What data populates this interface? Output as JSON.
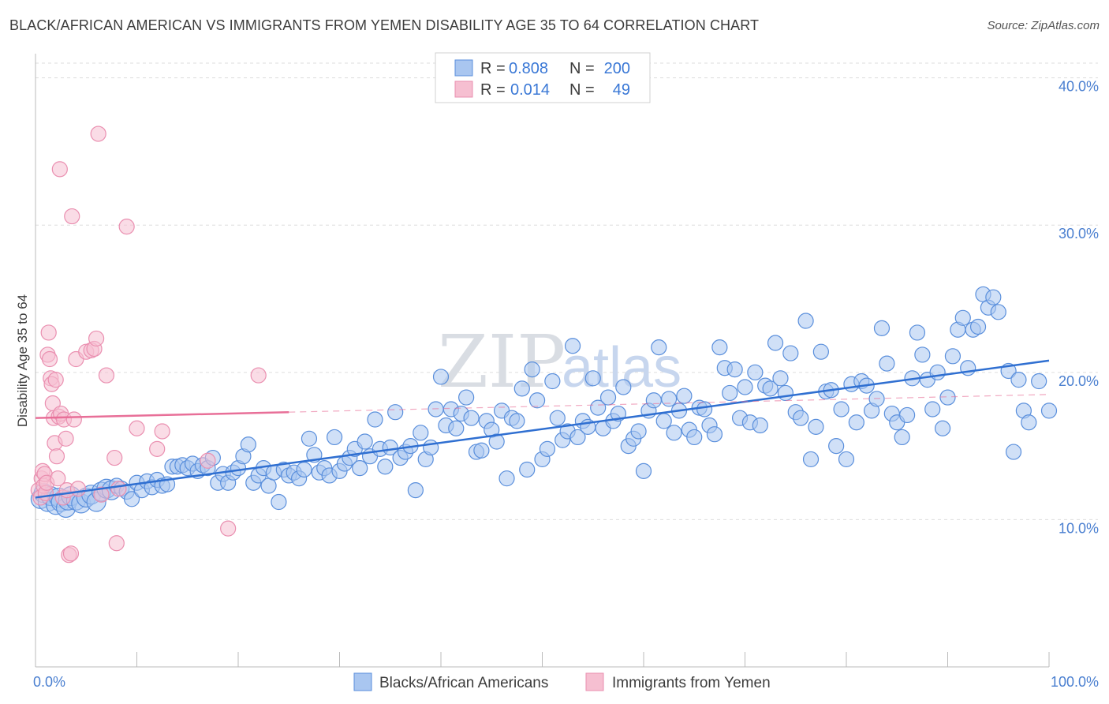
{
  "title": "BLACK/AFRICAN AMERICAN VS IMMIGRANTS FROM YEMEN DISABILITY AGE 35 TO 64 CORRELATION CHART",
  "source": "Source: ZipAtlas.com",
  "watermark": {
    "zip": "ZIP",
    "atlas": "atlas"
  },
  "colors": {
    "blue_fill": "#a9c6f0",
    "blue_stroke": "#5a8fdc",
    "blue_line": "#2f6fd1",
    "pink_fill": "#f6bfd1",
    "pink_stroke": "#ea8fb0",
    "pink_line": "#e86f98",
    "tick_text": "#4a7fd0",
    "grid": "#dddddd"
  },
  "legend": {
    "rows": [
      {
        "r_label": "R =",
        "r_value": "0.808",
        "n_label": "N =",
        "n_value": "200",
        "color": "blue"
      },
      {
        "r_label": "R =",
        "r_value": "0.014",
        "n_label": "N =",
        "n_value": "49",
        "color": "pink"
      }
    ]
  },
  "chart_data": {
    "type": "scatter",
    "title": "BLACK/AFRICAN AMERICAN VS IMMIGRANTS FROM YEMEN DISABILITY AGE 35 TO 64 CORRELATION CHART",
    "xlabel": "",
    "ylabel": "Disability Age 35 to 64",
    "xlim": [
      0,
      100
    ],
    "ylim": [
      0,
      41
    ],
    "y_ticks": [
      {
        "v": 10,
        "label": "10.0%"
      },
      {
        "v": 20,
        "label": "20.0%"
      },
      {
        "v": 30,
        "label": "30.0%"
      },
      {
        "v": 40,
        "label": "40.0%"
      }
    ],
    "x_tick_labels": [
      {
        "v": 0,
        "label": "0.0%"
      },
      {
        "v": 100,
        "label": "100.0%"
      }
    ],
    "x_minor_ticks": [
      0,
      10,
      20,
      30,
      40,
      50,
      60,
      70,
      80,
      90,
      100
    ],
    "grid": true,
    "legend_position": "top-center",
    "series": [
      {
        "name": "Blacks/African Americans",
        "color": "blue",
        "r": 0.808,
        "n": 200,
        "trend": {
          "x0": 0,
          "y0": 11.5,
          "x1": 100,
          "y1": 20.8,
          "style": "solid"
        },
        "points": [
          [
            0.5,
            11.4
          ],
          [
            0.8,
            11.8
          ],
          [
            1.2,
            11.2
          ],
          [
            1.5,
            11.6
          ],
          [
            2.0,
            11.0
          ],
          [
            2.3,
            11.5
          ],
          [
            2.5,
            11.2
          ],
          [
            3.0,
            10.8
          ],
          [
            3.2,
            11.3
          ],
          [
            3.5,
            11.6
          ],
          [
            4.0,
            11.3
          ],
          [
            4.5,
            11.1
          ],
          [
            5.0,
            11.5
          ],
          [
            5.5,
            11.7
          ],
          [
            6.0,
            11.2
          ],
          [
            6.5,
            11.9
          ],
          [
            7.0,
            12.1
          ],
          [
            7.5,
            12.0
          ],
          [
            8.0,
            12.3
          ],
          [
            8.5,
            12.1
          ],
          [
            9.0,
            11.9
          ],
          [
            9.5,
            11.4
          ],
          [
            10.0,
            12.5
          ],
          [
            10.5,
            12.0
          ],
          [
            11.0,
            12.6
          ],
          [
            11.5,
            12.2
          ],
          [
            12.0,
            12.7
          ],
          [
            12.5,
            12.3
          ],
          [
            13.0,
            12.4
          ],
          [
            13.5,
            13.6
          ],
          [
            14.0,
            13.6
          ],
          [
            14.5,
            13.7
          ],
          [
            15.0,
            13.5
          ],
          [
            15.5,
            13.8
          ],
          [
            16.0,
            13.3
          ],
          [
            16.5,
            13.7
          ],
          [
            17.0,
            13.5
          ],
          [
            17.5,
            14.2
          ],
          [
            18.0,
            12.5
          ],
          [
            18.5,
            13.1
          ],
          [
            19.0,
            12.5
          ],
          [
            19.5,
            13.2
          ],
          [
            20.0,
            13.5
          ],
          [
            20.5,
            14.3
          ],
          [
            21.0,
            15.1
          ],
          [
            21.5,
            12.5
          ],
          [
            22.0,
            13.0
          ],
          [
            22.5,
            13.5
          ],
          [
            23.0,
            12.3
          ],
          [
            23.5,
            13.2
          ],
          [
            24.0,
            11.2
          ],
          [
            24.5,
            13.4
          ],
          [
            25.0,
            13.0
          ],
          [
            25.5,
            13.2
          ],
          [
            26.0,
            12.8
          ],
          [
            26.5,
            13.4
          ],
          [
            27.0,
            15.5
          ],
          [
            27.5,
            14.4
          ],
          [
            28.0,
            13.2
          ],
          [
            28.5,
            13.5
          ],
          [
            29.0,
            13.0
          ],
          [
            29.5,
            15.6
          ],
          [
            30.0,
            13.3
          ],
          [
            30.5,
            13.8
          ],
          [
            31.0,
            14.2
          ],
          [
            31.5,
            14.8
          ],
          [
            32.0,
            13.5
          ],
          [
            32.5,
            15.3
          ],
          [
            33.0,
            14.3
          ],
          [
            33.5,
            16.8
          ],
          [
            34.0,
            14.8
          ],
          [
            34.5,
            13.6
          ],
          [
            35.0,
            14.9
          ],
          [
            35.5,
            17.3
          ],
          [
            36.0,
            14.2
          ],
          [
            36.5,
            14.6
          ],
          [
            37.0,
            15.0
          ],
          [
            37.5,
            12.0
          ],
          [
            38.0,
            15.9
          ],
          [
            38.5,
            14.1
          ],
          [
            39.0,
            14.9
          ],
          [
            39.5,
            17.5
          ],
          [
            40.0,
            19.7
          ],
          [
            40.5,
            16.4
          ],
          [
            41.0,
            17.5
          ],
          [
            41.5,
            16.2
          ],
          [
            42.0,
            17.2
          ],
          [
            42.5,
            18.3
          ],
          [
            43.0,
            16.9
          ],
          [
            43.5,
            14.6
          ],
          [
            44.0,
            14.7
          ],
          [
            44.5,
            16.7
          ],
          [
            45.0,
            16.1
          ],
          [
            45.5,
            15.3
          ],
          [
            46.0,
            17.4
          ],
          [
            46.5,
            12.8
          ],
          [
            47.0,
            16.9
          ],
          [
            47.5,
            16.7
          ],
          [
            48.0,
            18.9
          ],
          [
            48.5,
            13.4
          ],
          [
            49.0,
            20.2
          ],
          [
            49.5,
            18.1
          ],
          [
            50.0,
            14.1
          ],
          [
            50.5,
            14.8
          ],
          [
            51.0,
            19.4
          ],
          [
            51.5,
            16.9
          ],
          [
            52.0,
            15.4
          ],
          [
            52.5,
            16.0
          ],
          [
            53.0,
            21.8
          ],
          [
            53.5,
            15.6
          ],
          [
            54.0,
            16.7
          ],
          [
            54.5,
            16.3
          ],
          [
            55.0,
            19.6
          ],
          [
            55.5,
            17.6
          ],
          [
            56.0,
            16.2
          ],
          [
            56.5,
            18.3
          ],
          [
            57.0,
            16.7
          ],
          [
            57.5,
            17.2
          ],
          [
            58.0,
            19.0
          ],
          [
            58.5,
            15.0
          ],
          [
            59.0,
            15.5
          ],
          [
            59.5,
            16.0
          ],
          [
            60.0,
            13.3
          ],
          [
            60.5,
            17.4
          ],
          [
            61.0,
            18.1
          ],
          [
            61.5,
            21.7
          ],
          [
            62.0,
            16.7
          ],
          [
            62.5,
            18.2
          ],
          [
            63.0,
            15.9
          ],
          [
            63.5,
            17.4
          ],
          [
            64.0,
            18.4
          ],
          [
            64.5,
            16.1
          ],
          [
            65.0,
            15.6
          ],
          [
            65.5,
            17.6
          ],
          [
            66.0,
            17.5
          ],
          [
            66.5,
            16.4
          ],
          [
            67.0,
            15.8
          ],
          [
            67.5,
            21.7
          ],
          [
            68.0,
            20.3
          ],
          [
            68.5,
            18.6
          ],
          [
            69.0,
            20.2
          ],
          [
            69.5,
            16.9
          ],
          [
            70.0,
            19.0
          ],
          [
            70.5,
            16.6
          ],
          [
            71.0,
            20.0
          ],
          [
            71.5,
            16.4
          ],
          [
            72.0,
            19.1
          ],
          [
            72.5,
            18.9
          ],
          [
            73.0,
            22.0
          ],
          [
            73.5,
            19.6
          ],
          [
            74.0,
            18.6
          ],
          [
            74.5,
            21.3
          ],
          [
            75.0,
            17.3
          ],
          [
            75.5,
            16.9
          ],
          [
            76.0,
            23.5
          ],
          [
            76.5,
            14.1
          ],
          [
            77.0,
            16.3
          ],
          [
            77.5,
            21.4
          ],
          [
            78.0,
            18.7
          ],
          [
            78.5,
            18.8
          ],
          [
            79.0,
            15.0
          ],
          [
            79.5,
            17.5
          ],
          [
            80.0,
            14.1
          ],
          [
            80.5,
            19.2
          ],
          [
            81.0,
            16.6
          ],
          [
            81.5,
            19.4
          ],
          [
            82.0,
            19.1
          ],
          [
            82.5,
            17.4
          ],
          [
            83.0,
            18.2
          ],
          [
            83.5,
            23.0
          ],
          [
            84.0,
            20.6
          ],
          [
            84.5,
            17.2
          ],
          [
            85.0,
            16.6
          ],
          [
            85.5,
            15.6
          ],
          [
            86.0,
            17.1
          ],
          [
            86.5,
            19.6
          ],
          [
            87.0,
            22.7
          ],
          [
            87.5,
            21.2
          ],
          [
            88.0,
            19.5
          ],
          [
            88.5,
            17.5
          ],
          [
            89.0,
            20.0
          ],
          [
            89.5,
            16.2
          ],
          [
            90.0,
            18.3
          ],
          [
            90.5,
            21.1
          ],
          [
            91.0,
            22.9
          ],
          [
            91.5,
            23.7
          ],
          [
            92.0,
            20.3
          ],
          [
            92.5,
            22.9
          ],
          [
            93.0,
            23.1
          ],
          [
            93.5,
            25.3
          ],
          [
            94.0,
            24.4
          ],
          [
            94.5,
            25.1
          ],
          [
            95.0,
            24.1
          ],
          [
            96.0,
            20.1
          ],
          [
            96.5,
            14.6
          ],
          [
            97.0,
            19.5
          ],
          [
            97.5,
            17.4
          ],
          [
            98.0,
            16.6
          ],
          [
            99.0,
            19.4
          ],
          [
            100.0,
            17.4
          ]
        ]
      },
      {
        "name": "Immigrants from Yemen",
        "color": "pink",
        "r": 0.014,
        "n": 49,
        "trend": {
          "x0": 0,
          "y0": 16.9,
          "x1": 25,
          "y1": 17.3,
          "style": "solid",
          "extend_to": 100,
          "extend_y": 18.5
        },
        "points": [
          [
            0.3,
            12.0
          ],
          [
            0.5,
            11.5
          ],
          [
            0.6,
            12.8
          ],
          [
            0.7,
            13.3
          ],
          [
            0.8,
            12.3
          ],
          [
            0.9,
            13.1
          ],
          [
            1.0,
            11.8
          ],
          [
            1.1,
            12.5
          ],
          [
            1.2,
            21.2
          ],
          [
            1.3,
            22.7
          ],
          [
            1.4,
            20.9
          ],
          [
            1.5,
            19.6
          ],
          [
            1.6,
            19.2
          ],
          [
            1.7,
            17.9
          ],
          [
            1.8,
            16.9
          ],
          [
            1.9,
            15.2
          ],
          [
            2.0,
            19.5
          ],
          [
            2.1,
            14.3
          ],
          [
            2.2,
            12.8
          ],
          [
            2.3,
            17.0
          ],
          [
            2.4,
            33.8
          ],
          [
            2.5,
            17.2
          ],
          [
            2.7,
            11.5
          ],
          [
            2.8,
            16.8
          ],
          [
            3.0,
            15.5
          ],
          [
            3.1,
            12.0
          ],
          [
            3.3,
            7.6
          ],
          [
            3.5,
            7.7
          ],
          [
            3.6,
            30.6
          ],
          [
            3.8,
            16.8
          ],
          [
            4.0,
            20.9
          ],
          [
            4.2,
            12.1
          ],
          [
            5.0,
            21.4
          ],
          [
            5.5,
            21.5
          ],
          [
            5.8,
            21.6
          ],
          [
            6.0,
            22.3
          ],
          [
            6.2,
            36.2
          ],
          [
            6.5,
            11.7
          ],
          [
            7.0,
            19.8
          ],
          [
            7.8,
            14.2
          ],
          [
            8.0,
            8.4
          ],
          [
            8.2,
            12.1
          ],
          [
            9.0,
            29.9
          ],
          [
            10.0,
            16.2
          ],
          [
            12.0,
            14.8
          ],
          [
            12.5,
            16.0
          ],
          [
            17.0,
            14.0
          ],
          [
            19.0,
            9.4
          ],
          [
            22.0,
            19.8
          ]
        ]
      }
    ]
  },
  "bottom_legend": [
    {
      "label": "Blacks/African Americans",
      "color": "blue"
    },
    {
      "label": "Immigrants from Yemen",
      "color": "pink"
    }
  ]
}
